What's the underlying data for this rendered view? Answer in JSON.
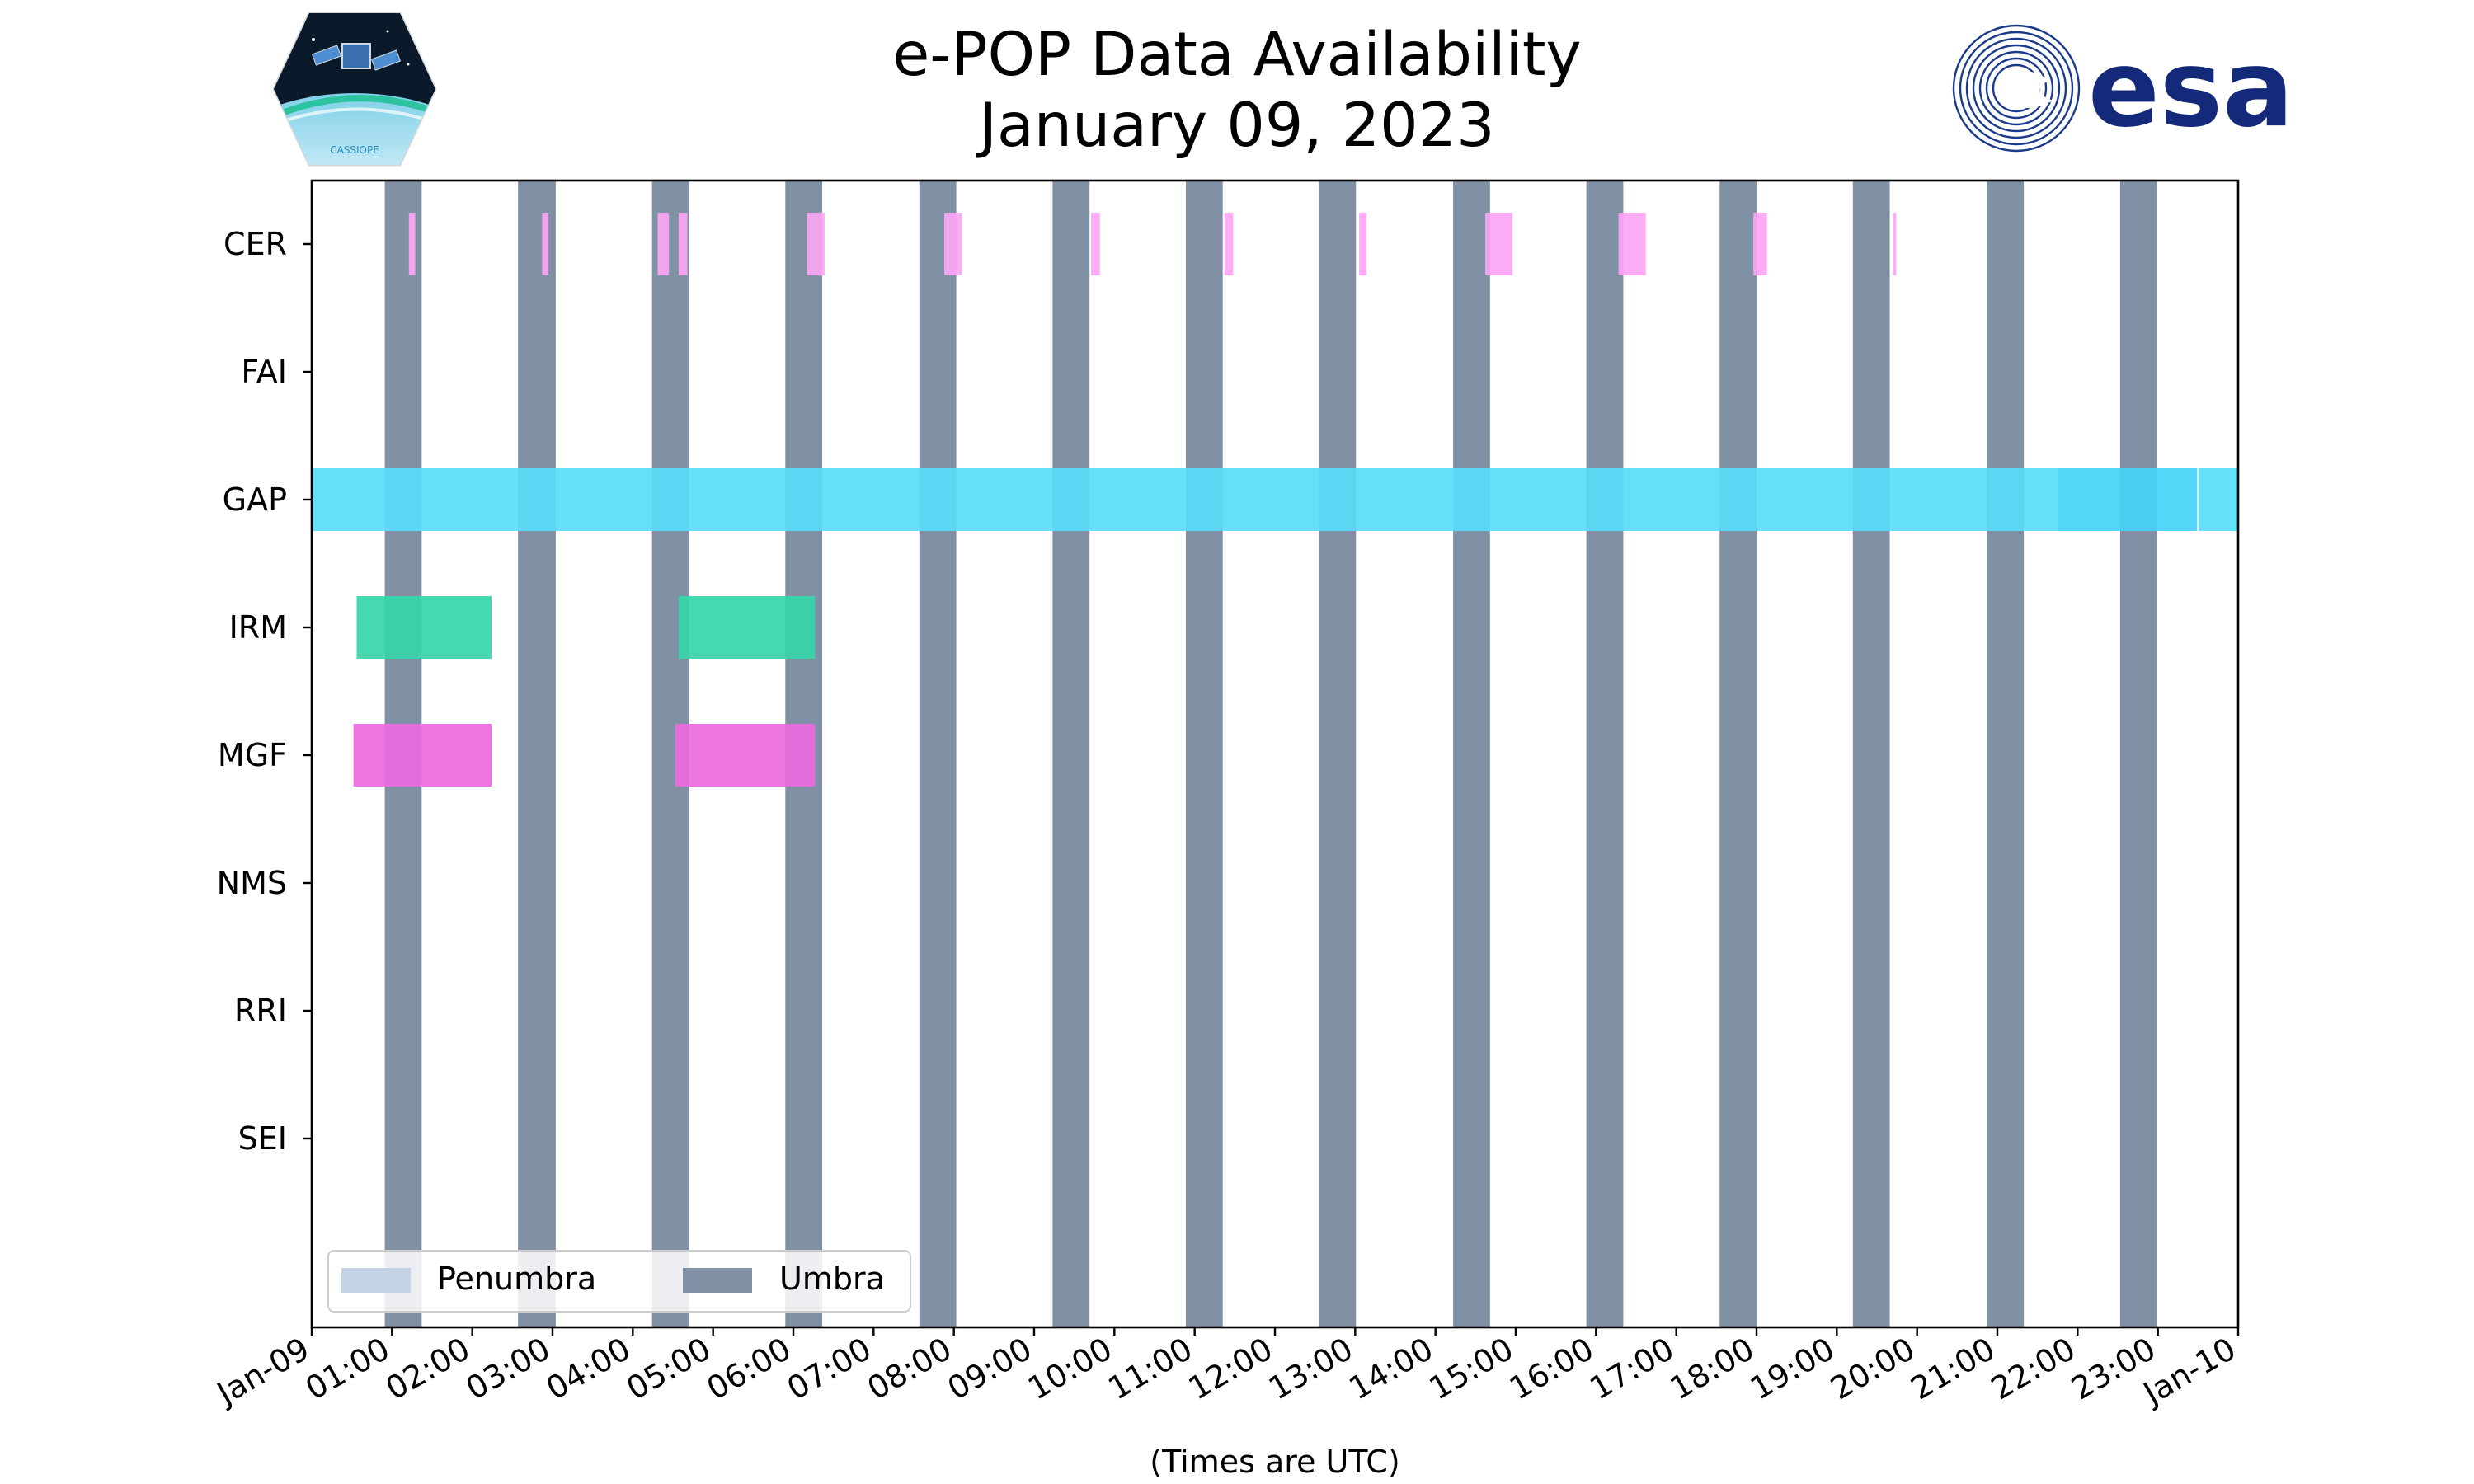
{
  "header": {
    "title_line1": "e-POP Data Availability",
    "title_line2": "January 09, 2023",
    "left_logo": {
      "name": "cassiope-mission-logo",
      "text": "CASSIOPE"
    },
    "right_logo": {
      "name": "esa-logo",
      "text": "esa"
    }
  },
  "colors": {
    "umbra": "#8090a5",
    "penumbra": "#c5d3e6",
    "CER": "#fba5f3",
    "GAP": "#57ddf8",
    "GAP_dark": "#44d2f6",
    "IRM": "#36d6a8",
    "MGF": "#ec6adf",
    "axis": "#000000"
  },
  "chart_data": {
    "type": "timeline",
    "title": "e-POP Data Availability\nJanuary 09, 2023",
    "xlabel": "(Times are UTC)",
    "ylabel": "",
    "x_unit": "hours UTC",
    "xlim": [
      0,
      24
    ],
    "x_ticks": [
      {
        "value": 0,
        "label": "Jan-09"
      },
      {
        "value": 1,
        "label": "01:00"
      },
      {
        "value": 2,
        "label": "02:00"
      },
      {
        "value": 3,
        "label": "03:00"
      },
      {
        "value": 4,
        "label": "04:00"
      },
      {
        "value": 5,
        "label": "05:00"
      },
      {
        "value": 6,
        "label": "06:00"
      },
      {
        "value": 7,
        "label": "07:00"
      },
      {
        "value": 8,
        "label": "08:00"
      },
      {
        "value": 9,
        "label": "09:00"
      },
      {
        "value": 10,
        "label": "10:00"
      },
      {
        "value": 11,
        "label": "11:00"
      },
      {
        "value": 12,
        "label": "12:00"
      },
      {
        "value": 13,
        "label": "13:00"
      },
      {
        "value": 14,
        "label": "14:00"
      },
      {
        "value": 15,
        "label": "15:00"
      },
      {
        "value": 16,
        "label": "16:00"
      },
      {
        "value": 17,
        "label": "17:00"
      },
      {
        "value": 18,
        "label": "18:00"
      },
      {
        "value": 19,
        "label": "19:00"
      },
      {
        "value": 20,
        "label": "20:00"
      },
      {
        "value": 21,
        "label": "21:00"
      },
      {
        "value": 22,
        "label": "22:00"
      },
      {
        "value": 23,
        "label": "23:00"
      },
      {
        "value": 24,
        "label": "Jan-10"
      }
    ],
    "instruments": [
      "CER",
      "FAI",
      "GAP",
      "IRM",
      "MGF",
      "NMS",
      "RRI",
      "SEI"
    ],
    "umbra_intervals": [
      [
        0.91,
        1.37
      ],
      [
        2.57,
        3.04
      ],
      [
        4.24,
        4.7
      ],
      [
        5.9,
        6.36
      ],
      [
        7.57,
        8.03
      ],
      [
        9.23,
        9.69
      ],
      [
        10.89,
        11.35
      ],
      [
        12.55,
        13.01
      ],
      [
        14.22,
        14.68
      ],
      [
        15.88,
        16.34
      ],
      [
        17.54,
        18.0
      ],
      [
        19.2,
        19.66
      ],
      [
        20.87,
        21.33
      ],
      [
        22.53,
        22.99
      ]
    ],
    "penumbra_intervals": [],
    "series": [
      {
        "name": "CER",
        "intervals": [
          [
            1.21,
            1.29
          ],
          [
            2.87,
            2.95
          ],
          [
            4.31,
            4.45
          ],
          [
            4.57,
            4.68
          ],
          [
            6.17,
            6.39
          ],
          [
            7.88,
            8.1
          ],
          [
            9.71,
            9.82
          ],
          [
            11.37,
            11.48
          ],
          [
            13.05,
            13.14
          ],
          [
            14.62,
            14.96
          ],
          [
            16.28,
            16.62
          ],
          [
            17.96,
            18.13
          ],
          [
            19.7,
            19.74
          ]
        ]
      },
      {
        "name": "FAI",
        "intervals": []
      },
      {
        "name": "GAP",
        "intervals": [
          [
            0.0,
            21.76
          ],
          [
            21.76,
            23.49
          ],
          [
            23.51,
            24.0
          ]
        ]
      },
      {
        "name": "IRM",
        "intervals": [
          [
            0.56,
            2.24
          ],
          [
            4.57,
            6.27
          ]
        ]
      },
      {
        "name": "MGF",
        "intervals": [
          [
            0.52,
            2.24
          ],
          [
            4.53,
            6.27
          ]
        ]
      },
      {
        "name": "NMS",
        "intervals": []
      },
      {
        "name": "RRI",
        "intervals": []
      },
      {
        "name": "SEI",
        "intervals": []
      }
    ],
    "legend": {
      "position": "lower-left",
      "entries": [
        {
          "label": "Penumbra",
          "color_key": "penumbra"
        },
        {
          "label": "Umbra",
          "color_key": "umbra"
        }
      ]
    },
    "grid": false
  }
}
